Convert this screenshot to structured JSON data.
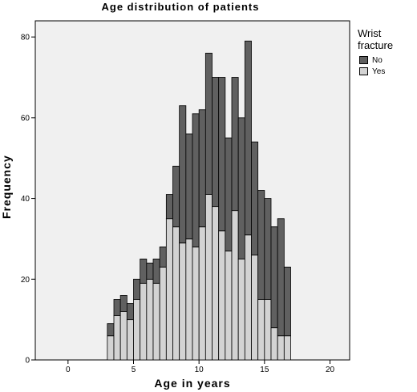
{
  "chart_data": {
    "type": "bar",
    "stacked": true,
    "title": "Age distribution of patients",
    "xlabel": "Age in years",
    "ylabel": "Frequency",
    "xlim": [
      -2.5,
      21.5
    ],
    "ylim": [
      0,
      84
    ],
    "xticks": [
      0,
      5,
      10,
      15,
      20
    ],
    "yticks": [
      0,
      20,
      40,
      60,
      80
    ],
    "bin_width": 0.5,
    "legend_title": "Wrist fracture",
    "legend_position": "right",
    "bins": [
      3.0,
      3.5,
      4.0,
      4.5,
      5.0,
      5.5,
      6.0,
      6.5,
      7.0,
      7.5,
      8.0,
      8.5,
      9.0,
      9.5,
      10.0,
      10.5,
      11.0,
      11.5,
      12.0,
      12.5,
      13.0,
      13.5,
      14.0,
      14.5,
      15.0,
      15.5,
      16.0,
      16.5
    ],
    "series": [
      {
        "name": "Yes",
        "color": "#d3d3d3",
        "values": [
          6,
          11,
          12,
          10,
          15,
          19,
          20,
          19,
          23,
          35,
          33,
          29,
          30,
          28,
          33,
          41,
          38,
          32,
          27,
          37,
          25,
          31,
          26,
          15,
          15,
          8,
          6,
          6
        ]
      },
      {
        "name": "No",
        "color": "#606060",
        "values": [
          3,
          4,
          4,
          4,
          5,
          6,
          4,
          6,
          5,
          6,
          15,
          34,
          26,
          33,
          29,
          35,
          32,
          38,
          28,
          33,
          35,
          48,
          28,
          27,
          25,
          25,
          29,
          17
        ]
      }
    ]
  }
}
